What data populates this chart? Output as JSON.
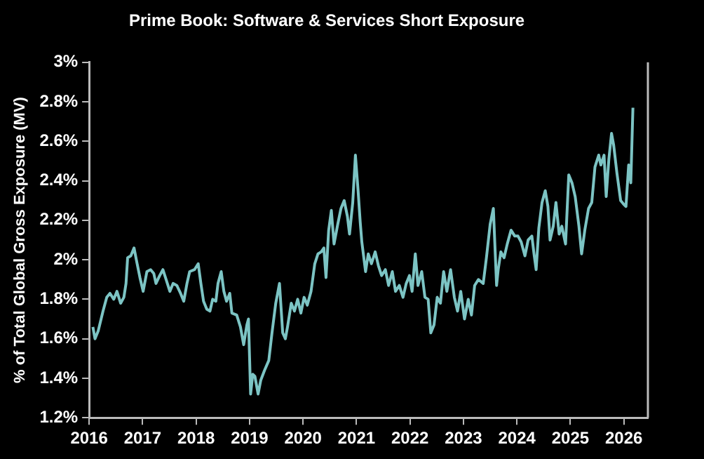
{
  "chart_data": {
    "type": "line",
    "title": "Prime Book: Software & Services Short Exposure",
    "ylabel": "% of Total Global Gross Exposure (MV)",
    "x": [
      2016.07,
      2016.11,
      2016.17,
      2016.26,
      2016.33,
      2016.39,
      2016.46,
      2016.52,
      2016.59,
      2016.65,
      2016.69,
      2016.72,
      2016.78,
      2016.84,
      2016.89,
      2016.95,
      2017.01,
      2017.08,
      2017.15,
      2017.21,
      2017.25,
      2017.32,
      2017.38,
      2017.44,
      2017.51,
      2017.57,
      2017.64,
      2017.71,
      2017.77,
      2017.83,
      2017.88,
      2017.97,
      2018.04,
      2018.09,
      2018.14,
      2018.2,
      2018.26,
      2018.31,
      2018.37,
      2018.41,
      2018.47,
      2018.52,
      2018.57,
      2018.63,
      2018.67,
      2018.76,
      2018.83,
      2018.89,
      2018.95,
      2018.98,
      2019.02,
      2019.06,
      2019.1,
      2019.16,
      2019.21,
      2019.28,
      2019.36,
      2019.42,
      2019.49,
      2019.56,
      2019.62,
      2019.67,
      2019.71,
      2019.78,
      2019.84,
      2019.9,
      2019.96,
      2020.02,
      2020.08,
      2020.15,
      2020.22,
      2020.28,
      2020.34,
      2020.39,
      2020.43,
      2020.48,
      2020.53,
      2020.58,
      2020.65,
      2020.71,
      2020.77,
      2020.83,
      2020.87,
      2020.93,
      2020.98,
      2021.03,
      2021.07,
      2021.1,
      2021.17,
      2021.22,
      2021.28,
      2021.35,
      2021.41,
      2021.47,
      2021.54,
      2021.6,
      2021.67,
      2021.73,
      2021.8,
      2021.87,
      2021.93,
      2021.99,
      2022.04,
      2022.1,
      2022.15,
      2022.22,
      2022.28,
      2022.34,
      2022.39,
      2022.45,
      2022.51,
      2022.57,
      2022.63,
      2022.69,
      2022.76,
      2022.83,
      2022.89,
      2022.95,
      2023.02,
      2023.09,
      2023.15,
      2023.21,
      2023.28,
      2023.37,
      2023.43,
      2023.5,
      2023.56,
      2023.62,
      2023.65,
      2023.7,
      2023.76,
      2023.82,
      2023.89,
      2023.96,
      2024.02,
      2024.08,
      2024.15,
      2024.21,
      2024.28,
      2024.32,
      2024.36,
      2024.41,
      2024.47,
      2024.53,
      2024.58,
      2024.62,
      2024.68,
      2024.73,
      2024.79,
      2024.84,
      2024.91,
      2024.97,
      2025.03,
      2025.09,
      2025.16,
      2025.21,
      2025.27,
      2025.34,
      2025.4,
      2025.46,
      2025.53,
      2025.57,
      2025.63,
      2025.67,
      2025.72,
      2025.77,
      2025.81,
      2025.87,
      2025.94,
      2026.0,
      2026.04,
      2026.09,
      2026.13,
      2026.17
    ],
    "series": [
      {
        "color": "#7cc4c4",
        "values": [
          1.66,
          1.6,
          1.64,
          1.74,
          1.81,
          1.83,
          1.8,
          1.84,
          1.78,
          1.81,
          1.88,
          2.01,
          2.02,
          2.06,
          1.99,
          1.91,
          1.84,
          1.94,
          1.95,
          1.93,
          1.88,
          1.92,
          1.95,
          1.9,
          1.84,
          1.88,
          1.87,
          1.83,
          1.79,
          1.88,
          1.94,
          1.95,
          1.98,
          1.88,
          1.79,
          1.75,
          1.74,
          1.8,
          1.79,
          1.88,
          1.94,
          1.84,
          1.79,
          1.83,
          1.73,
          1.72,
          1.66,
          1.57,
          1.67,
          1.7,
          1.32,
          1.42,
          1.41,
          1.32,
          1.39,
          1.44,
          1.49,
          1.63,
          1.78,
          1.88,
          1.63,
          1.6,
          1.66,
          1.78,
          1.74,
          1.8,
          1.73,
          1.81,
          1.77,
          1.84,
          1.98,
          2.03,
          2.04,
          2.06,
          1.91,
          2.15,
          2.25,
          2.08,
          2.18,
          2.26,
          2.3,
          2.22,
          2.13,
          2.29,
          2.53,
          2.35,
          2.19,
          2.09,
          1.94,
          2.03,
          1.98,
          2.04,
          1.97,
          1.92,
          1.95,
          1.87,
          1.94,
          1.84,
          1.87,
          1.81,
          1.88,
          1.92,
          1.84,
          2.03,
          1.87,
          1.94,
          1.81,
          1.8,
          1.63,
          1.67,
          1.81,
          1.78,
          1.94,
          1.84,
          1.95,
          1.81,
          1.74,
          1.84,
          1.7,
          1.8,
          1.72,
          1.87,
          1.9,
          1.88,
          2.01,
          2.18,
          2.26,
          1.87,
          1.95,
          2.04,
          2.01,
          2.08,
          2.15,
          2.12,
          2.12,
          2.09,
          2.02,
          2.1,
          2.12,
          2.03,
          1.95,
          2.16,
          2.29,
          2.35,
          2.27,
          2.1,
          2.17,
          2.29,
          2.13,
          2.17,
          2.08,
          2.43,
          2.39,
          2.32,
          2.17,
          2.03,
          2.15,
          2.26,
          2.29,
          2.47,
          2.53,
          2.48,
          2.53,
          2.32,
          2.51,
          2.64,
          2.58,
          2.44,
          2.3,
          2.28,
          2.27,
          2.48,
          2.39,
          2.77
        ]
      }
    ],
    "xlim": [
      2016,
      2026.45
    ],
    "xticks": [
      2016,
      2017,
      2018,
      2019,
      2020,
      2021,
      2022,
      2023,
      2024,
      2025,
      2026
    ],
    "ylim": [
      1.2,
      3.0
    ],
    "yticks": [
      {
        "value": 1.2,
        "label": "1.2%"
      },
      {
        "value": 1.4,
        "label": "1.4%"
      },
      {
        "value": 1.6,
        "label": "1.6%"
      },
      {
        "value": 1.8,
        "label": "1.8%"
      },
      {
        "value": 2.0,
        "label": "2%"
      },
      {
        "value": 2.2,
        "label": "2.2%"
      },
      {
        "value": 2.4,
        "label": "2.4%"
      },
      {
        "value": 2.6,
        "label": "2.6%"
      },
      {
        "value": 2.8,
        "label": "2.8%"
      },
      {
        "value": 3.0,
        "label": "3%"
      }
    ],
    "grid": false,
    "legend": false,
    "marker": "none",
    "line_style": "solid"
  }
}
